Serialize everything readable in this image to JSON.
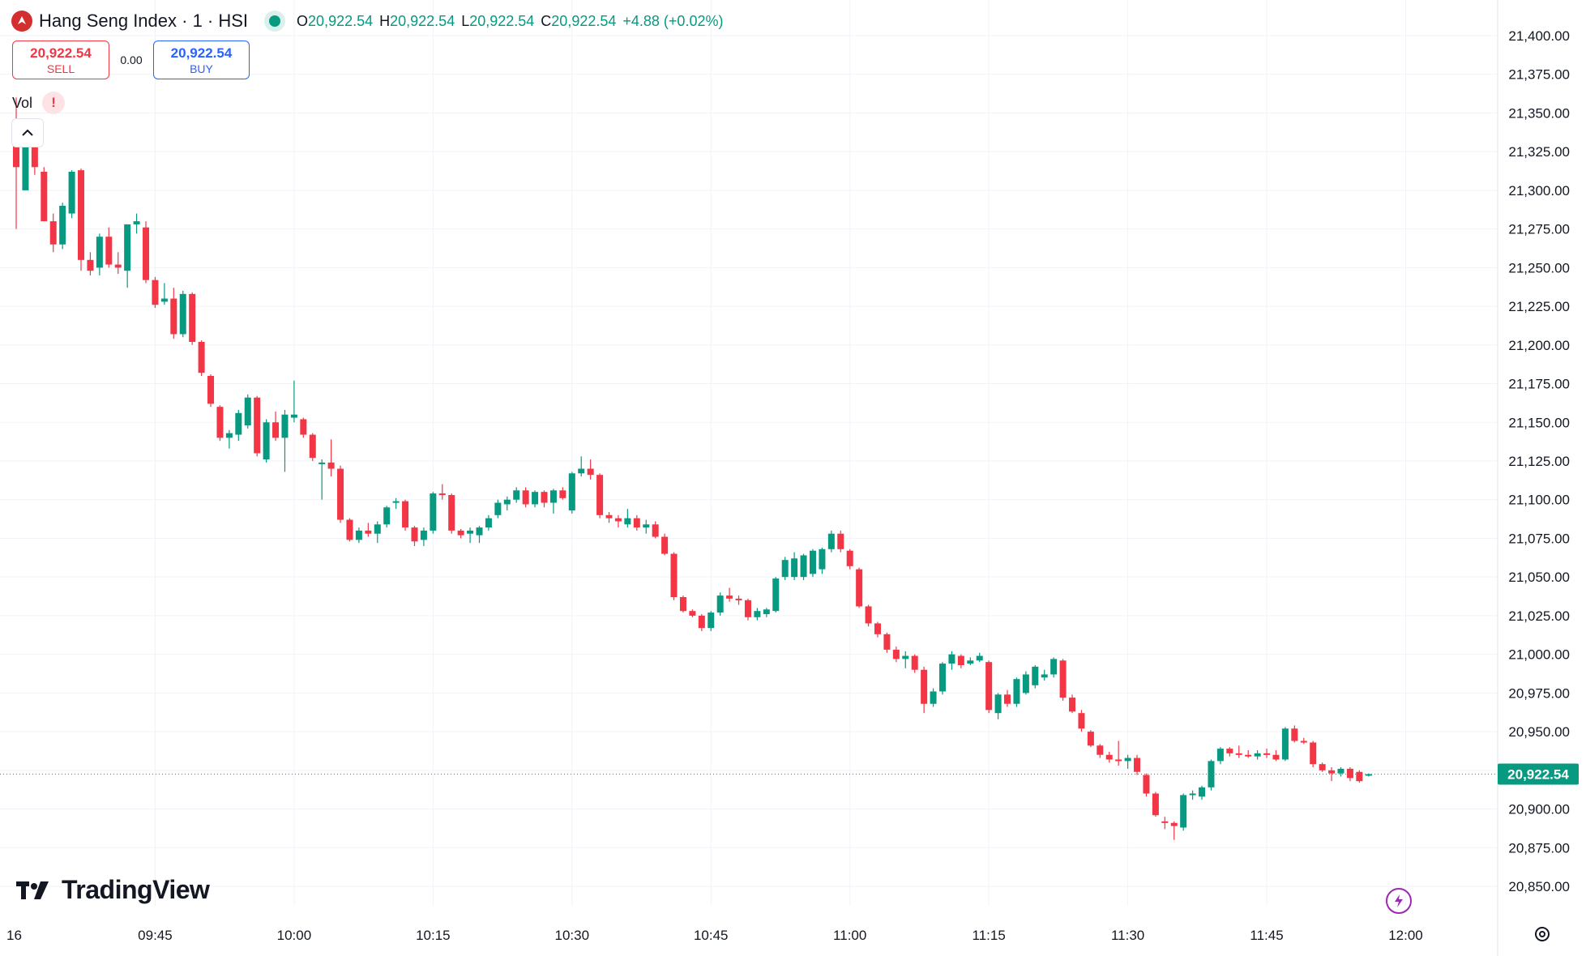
{
  "header": {
    "title": "Hang Seng Index · 1 · HSI",
    "o_label": "O",
    "o": "20,922.54",
    "h_label": "H",
    "h": "20,922.54",
    "l_label": "L",
    "l": "20,922.54",
    "c_label": "C",
    "c": "20,922.54",
    "change": "+4.88 (+0.02%)"
  },
  "trade": {
    "sell_price": "20,922.54",
    "sell_label": "SELL",
    "spread": "0.00",
    "buy_price": "20,922.54",
    "buy_label": "BUY"
  },
  "indicator": {
    "label": "Vol",
    "warning": "!"
  },
  "brand": {
    "name": "TradingView"
  },
  "colors": {
    "up": "#089981",
    "down": "#f23645",
    "grid": "#f0f3fa",
    "axis_text": "#131722"
  },
  "icons": [
    "hsi-logo-icon",
    "status-dot-icon",
    "warning-icon",
    "chevron-up-icon",
    "tradingview-logo-icon",
    "lightning-icon",
    "settings-gear-icon"
  ],
  "chart_data": {
    "type": "candlestick",
    "title": "Hang Seng Index · 1 · HSI",
    "interval": "1 minute",
    "last_price": 20922.54,
    "last_price_label": "20,922.54",
    "ylim": [
      20835,
      21440
    ],
    "y_ticks": [
      21400,
      21375,
      21350,
      21325,
      21300,
      21275,
      21250,
      21225,
      21200,
      21175,
      21150,
      21125,
      21100,
      21075,
      21050,
      21025,
      21000,
      20975,
      20950,
      20925,
      20900,
      20875,
      20850
    ],
    "y_tick_labels": [
      "21,400.00",
      "21,375.00",
      "21,350.00",
      "21,325.00",
      "21,300.00",
      "21,275.00",
      "21,250.00",
      "21,225.00",
      "21,200.00",
      "21,175.00",
      "21,150.00",
      "21,125.00",
      "21,100.00",
      "21,075.00",
      "21,050.00",
      "21,025.00",
      "21,000.00",
      "20,975.00",
      "20,950.00",
      "20,925.00",
      "20,900.00",
      "20,875.00",
      "20,850.00"
    ],
    "x_ticks": [
      {
        "label": "16",
        "minute": -16
      },
      {
        "label": "09:45",
        "minute": 15
      },
      {
        "label": "10:00",
        "minute": 30
      },
      {
        "label": "10:15",
        "minute": 45
      },
      {
        "label": "10:30",
        "minute": 60
      },
      {
        "label": "10:45",
        "minute": 75
      },
      {
        "label": "11:00",
        "minute": 90
      },
      {
        "label": "11:15",
        "minute": 105
      },
      {
        "label": "11:30",
        "minute": 120
      },
      {
        "label": "11:45",
        "minute": 135
      },
      {
        "label": "12:00",
        "minute": 150
      }
    ],
    "x_axis_note": "minute = minutes after 09:30",
    "candles": [
      {
        "t": 0,
        "o": 21345,
        "h": 21360,
        "l": 21275,
        "c": 21315
      },
      {
        "t": 1,
        "o": 21300,
        "h": 21330,
        "l": 21305,
        "c": 21330
      },
      {
        "t": 2,
        "o": 21330,
        "h": 21335,
        "l": 21310,
        "c": 21315
      },
      {
        "t": 3,
        "o": 21312,
        "h": 21315,
        "l": 21280,
        "c": 21280
      },
      {
        "t": 4,
        "o": 21280,
        "h": 21285,
        "l": 21260,
        "c": 21265
      },
      {
        "t": 5,
        "o": 21265,
        "h": 21292,
        "l": 21262,
        "c": 21290
      },
      {
        "t": 6,
        "o": 21285,
        "h": 21313,
        "l": 21282,
        "c": 21312
      },
      {
        "t": 7,
        "o": 21313,
        "h": 21314,
        "l": 21248,
        "c": 21255
      },
      {
        "t": 8,
        "o": 21255,
        "h": 21260,
        "l": 21245,
        "c": 21248
      },
      {
        "t": 9,
        "o": 21250,
        "h": 21272,
        "l": 21245,
        "c": 21270
      },
      {
        "t": 10,
        "o": 21270,
        "h": 21276,
        "l": 21250,
        "c": 21252
      },
      {
        "t": 11,
        "o": 21252,
        "h": 21260,
        "l": 21246,
        "c": 21250
      },
      {
        "t": 12,
        "o": 21248,
        "h": 21278,
        "l": 21237,
        "c": 21278
      },
      {
        "t": 13,
        "o": 21278,
        "h": 21285,
        "l": 21272,
        "c": 21280
      },
      {
        "t": 14,
        "o": 21276,
        "h": 21280,
        "l": 21240,
        "c": 21242
      },
      {
        "t": 15,
        "o": 21242,
        "h": 21244,
        "l": 21224,
        "c": 21226
      },
      {
        "t": 16,
        "o": 21228,
        "h": 21240,
        "l": 21226,
        "c": 21230
      },
      {
        "t": 17,
        "o": 21230,
        "h": 21237,
        "l": 21204,
        "c": 21207
      },
      {
        "t": 18,
        "o": 21207,
        "h": 21235,
        "l": 21205,
        "c": 21233
      },
      {
        "t": 19,
        "o": 21233,
        "h": 21234,
        "l": 21200,
        "c": 21202
      },
      {
        "t": 20,
        "o": 21202,
        "h": 21203,
        "l": 21180,
        "c": 21182
      },
      {
        "t": 21,
        "o": 21180,
        "h": 21181,
        "l": 21160,
        "c": 21162
      },
      {
        "t": 22,
        "o": 21160,
        "h": 21161,
        "l": 21138,
        "c": 21140
      },
      {
        "t": 23,
        "o": 21140,
        "h": 21145,
        "l": 21133,
        "c": 21143
      },
      {
        "t": 24,
        "o": 21142,
        "h": 21158,
        "l": 21138,
        "c": 21156
      },
      {
        "t": 25,
        "o": 21148,
        "h": 21168,
        "l": 21146,
        "c": 21166
      },
      {
        "t": 26,
        "o": 21166,
        "h": 21167,
        "l": 21128,
        "c": 21130
      },
      {
        "t": 27,
        "o": 21126,
        "h": 21152,
        "l": 21124,
        "c": 21150
      },
      {
        "t": 28,
        "o": 21150,
        "h": 21157,
        "l": 21138,
        "c": 21140
      },
      {
        "t": 29,
        "o": 21140,
        "h": 21158,
        "l": 21118,
        "c": 21155
      },
      {
        "t": 30,
        "o": 21153,
        "h": 21177,
        "l": 21150,
        "c": 21155
      },
      {
        "t": 31,
        "o": 21152,
        "h": 21153,
        "l": 21140,
        "c": 21142
      },
      {
        "t": 32,
        "o": 21142,
        "h": 21143,
        "l": 21125,
        "c": 21127
      },
      {
        "t": 33,
        "o": 21123,
        "h": 21126,
        "l": 21100,
        "c": 21124
      },
      {
        "t": 34,
        "o": 21124,
        "h": 21139,
        "l": 21115,
        "c": 21120
      },
      {
        "t": 35,
        "o": 21120,
        "h": 21122,
        "l": 21085,
        "c": 21087
      },
      {
        "t": 36,
        "o": 21087,
        "h": 21088,
        "l": 21073,
        "c": 21074
      },
      {
        "t": 37,
        "o": 21074,
        "h": 21082,
        "l": 21072,
        "c": 21080
      },
      {
        "t": 38,
        "o": 21080,
        "h": 21085,
        "l": 21076,
        "c": 21078
      },
      {
        "t": 39,
        "o": 21078,
        "h": 21086,
        "l": 21072,
        "c": 21084
      },
      {
        "t": 40,
        "o": 21084,
        "h": 21096,
        "l": 21082,
        "c": 21095
      },
      {
        "t": 41,
        "o": 21098,
        "h": 21101,
        "l": 21094,
        "c": 21099
      },
      {
        "t": 42,
        "o": 21099,
        "h": 21100,
        "l": 21080,
        "c": 21082
      },
      {
        "t": 43,
        "o": 21082,
        "h": 21083,
        "l": 21070,
        "c": 21073
      },
      {
        "t": 44,
        "o": 21074,
        "h": 21082,
        "l": 21070,
        "c": 21080
      },
      {
        "t": 45,
        "o": 21080,
        "h": 21105,
        "l": 21078,
        "c": 21104
      },
      {
        "t": 46,
        "o": 21104,
        "h": 21110,
        "l": 21100,
        "c": 21103
      },
      {
        "t": 47,
        "o": 21103,
        "h": 21104,
        "l": 21078,
        "c": 21080
      },
      {
        "t": 48,
        "o": 21080,
        "h": 21081,
        "l": 21075,
        "c": 21077
      },
      {
        "t": 49,
        "o": 21078,
        "h": 21082,
        "l": 21072,
        "c": 21080
      },
      {
        "t": 50,
        "o": 21077,
        "h": 21083,
        "l": 21072,
        "c": 21082
      },
      {
        "t": 51,
        "o": 21082,
        "h": 21090,
        "l": 21080,
        "c": 21088
      },
      {
        "t": 52,
        "o": 21090,
        "h": 21100,
        "l": 21088,
        "c": 21098
      },
      {
        "t": 53,
        "o": 21097,
        "h": 21102,
        "l": 21093,
        "c": 21100
      },
      {
        "t": 54,
        "o": 21100,
        "h": 21108,
        "l": 21098,
        "c": 21106
      },
      {
        "t": 55,
        "o": 21106,
        "h": 21108,
        "l": 21095,
        "c": 21097
      },
      {
        "t": 56,
        "o": 21097,
        "h": 21106,
        "l": 21095,
        "c": 21105
      },
      {
        "t": 57,
        "o": 21105,
        "h": 21106,
        "l": 21095,
        "c": 21098
      },
      {
        "t": 58,
        "o": 21098,
        "h": 21107,
        "l": 21091,
        "c": 21106
      },
      {
        "t": 59,
        "o": 21106,
        "h": 21108,
        "l": 21100,
        "c": 21101
      },
      {
        "t": 60,
        "o": 21093,
        "h": 21118,
        "l": 21091,
        "c": 21117
      },
      {
        "t": 61,
        "o": 21117,
        "h": 21128,
        "l": 21115,
        "c": 21120
      },
      {
        "t": 62,
        "o": 21120,
        "h": 21126,
        "l": 21113,
        "c": 21116
      },
      {
        "t": 63,
        "o": 21116,
        "h": 21117,
        "l": 21088,
        "c": 21090
      },
      {
        "t": 64,
        "o": 21090,
        "h": 21092,
        "l": 21085,
        "c": 21088
      },
      {
        "t": 65,
        "o": 21088,
        "h": 21090,
        "l": 21082,
        "c": 21086
      },
      {
        "t": 66,
        "o": 21084,
        "h": 21094,
        "l": 21082,
        "c": 21088
      },
      {
        "t": 67,
        "o": 21088,
        "h": 21090,
        "l": 21080,
        "c": 21082
      },
      {
        "t": 68,
        "o": 21082,
        "h": 21087,
        "l": 21078,
        "c": 21084
      },
      {
        "t": 69,
        "o": 21084,
        "h": 21086,
        "l": 21075,
        "c": 21076
      },
      {
        "t": 70,
        "o": 21076,
        "h": 21078,
        "l": 21064,
        "c": 21065
      },
      {
        "t": 71,
        "o": 21065,
        "h": 21066,
        "l": 21035,
        "c": 21037
      },
      {
        "t": 72,
        "o": 21037,
        "h": 21038,
        "l": 21027,
        "c": 21028
      },
      {
        "t": 73,
        "o": 21028,
        "h": 21029,
        "l": 21024,
        "c": 21025
      },
      {
        "t": 74,
        "o": 21025,
        "h": 21026,
        "l": 21015,
        "c": 21017
      },
      {
        "t": 75,
        "o": 21017,
        "h": 21028,
        "l": 21015,
        "c": 21027
      },
      {
        "t": 76,
        "o": 21027,
        "h": 21040,
        "l": 21025,
        "c": 21038
      },
      {
        "t": 77,
        "o": 21038,
        "h": 21043,
        "l": 21034,
        "c": 21036
      },
      {
        "t": 78,
        "o": 21036,
        "h": 21038,
        "l": 21032,
        "c": 21035
      },
      {
        "t": 79,
        "o": 21035,
        "h": 21036,
        "l": 21022,
        "c": 21024
      },
      {
        "t": 80,
        "o": 21024,
        "h": 21030,
        "l": 21022,
        "c": 21028
      },
      {
        "t": 81,
        "o": 21026,
        "h": 21030,
        "l": 21024,
        "c": 21029
      },
      {
        "t": 82,
        "o": 21028,
        "h": 21050,
        "l": 21027,
        "c": 21049
      },
      {
        "t": 83,
        "o": 21050,
        "h": 21063,
        "l": 21048,
        "c": 21061
      },
      {
        "t": 84,
        "o": 21050,
        "h": 21066,
        "l": 21048,
        "c": 21062
      },
      {
        "t": 85,
        "o": 21050,
        "h": 21065,
        "l": 21048,
        "c": 21064
      },
      {
        "t": 86,
        "o": 21052,
        "h": 21068,
        "l": 21050,
        "c": 21067
      },
      {
        "t": 87,
        "o": 21055,
        "h": 21069,
        "l": 21052,
        "c": 21068
      },
      {
        "t": 88,
        "o": 21068,
        "h": 21080,
        "l": 21066,
        "c": 21078
      },
      {
        "t": 89,
        "o": 21078,
        "h": 21080,
        "l": 21066,
        "c": 21068
      },
      {
        "t": 90,
        "o": 21067,
        "h": 21068,
        "l": 21055,
        "c": 21057
      },
      {
        "t": 91,
        "o": 21055,
        "h": 21056,
        "l": 21030,
        "c": 21031
      },
      {
        "t": 92,
        "o": 21031,
        "h": 21032,
        "l": 21018,
        "c": 21020
      },
      {
        "t": 93,
        "o": 21020,
        "h": 21021,
        "l": 21011,
        "c": 21013
      },
      {
        "t": 94,
        "o": 21013,
        "h": 21014,
        "l": 21001,
        "c": 21003
      },
      {
        "t": 95,
        "o": 21003,
        "h": 21005,
        "l": 20995,
        "c": 20997
      },
      {
        "t": 96,
        "o": 20997,
        "h": 21002,
        "l": 20991,
        "c": 20999
      },
      {
        "t": 97,
        "o": 20999,
        "h": 21000,
        "l": 20988,
        "c": 20990
      },
      {
        "t": 98,
        "o": 20990,
        "h": 20992,
        "l": 20962,
        "c": 20968
      },
      {
        "t": 99,
        "o": 20968,
        "h": 20978,
        "l": 20966,
        "c": 20976
      },
      {
        "t": 100,
        "o": 20976,
        "h": 20995,
        "l": 20974,
        "c": 20994
      },
      {
        "t": 101,
        "o": 20994,
        "h": 21002,
        "l": 20990,
        "c": 21000
      },
      {
        "t": 102,
        "o": 20999,
        "h": 21000,
        "l": 20991,
        "c": 20993
      },
      {
        "t": 103,
        "o": 20994,
        "h": 20998,
        "l": 20993,
        "c": 20996
      },
      {
        "t": 104,
        "o": 20996,
        "h": 21001,
        "l": 20995,
        "c": 20999
      },
      {
        "t": 105,
        "o": 20995,
        "h": 20996,
        "l": 20962,
        "c": 20964
      },
      {
        "t": 106,
        "o": 20962,
        "h": 20975,
        "l": 20958,
        "c": 20974
      },
      {
        "t": 107,
        "o": 20974,
        "h": 20977,
        "l": 20966,
        "c": 20968
      },
      {
        "t": 108,
        "o": 20968,
        "h": 20985,
        "l": 20966,
        "c": 20984
      },
      {
        "t": 109,
        "o": 20975,
        "h": 20989,
        "l": 20974,
        "c": 20987
      },
      {
        "t": 110,
        "o": 20980,
        "h": 20993,
        "l": 20978,
        "c": 20992
      },
      {
        "t": 111,
        "o": 20985,
        "h": 20990,
        "l": 20983,
        "c": 20987
      },
      {
        "t": 112,
        "o": 20987,
        "h": 20998,
        "l": 20985,
        "c": 20997
      },
      {
        "t": 113,
        "o": 20996,
        "h": 20997,
        "l": 20970,
        "c": 20972
      },
      {
        "t": 114,
        "o": 20972,
        "h": 20974,
        "l": 20962,
        "c": 20963
      },
      {
        "t": 115,
        "o": 20962,
        "h": 20964,
        "l": 20950,
        "c": 20952
      },
      {
        "t": 116,
        "o": 20950,
        "h": 20951,
        "l": 20940,
        "c": 20941
      },
      {
        "t": 117,
        "o": 20941,
        "h": 20942,
        "l": 20933,
        "c": 20935
      },
      {
        "t": 118,
        "o": 20935,
        "h": 20937,
        "l": 20930,
        "c": 20932
      },
      {
        "t": 119,
        "o": 20932,
        "h": 20944,
        "l": 20928,
        "c": 20931
      },
      {
        "t": 120,
        "o": 20931,
        "h": 20935,
        "l": 20926,
        "c": 20933
      },
      {
        "t": 121,
        "o": 20933,
        "h": 20935,
        "l": 20922,
        "c": 20924
      },
      {
        "t": 122,
        "o": 20922,
        "h": 20923,
        "l": 20908,
        "c": 20910
      },
      {
        "t": 123,
        "o": 20910,
        "h": 20911,
        "l": 20895,
        "c": 20896
      },
      {
        "t": 124,
        "o": 20892,
        "h": 20895,
        "l": 20887,
        "c": 20891
      },
      {
        "t": 125,
        "o": 20891,
        "h": 20892,
        "l": 20880,
        "c": 20889
      },
      {
        "t": 126,
        "o": 20888,
        "h": 20910,
        "l": 20886,
        "c": 20909
      },
      {
        "t": 127,
        "o": 20909,
        "h": 20912,
        "l": 20906,
        "c": 20910
      },
      {
        "t": 128,
        "o": 20908,
        "h": 20915,
        "l": 20906,
        "c": 20914
      },
      {
        "t": 129,
        "o": 20914,
        "h": 20932,
        "l": 20912,
        "c": 20931
      },
      {
        "t": 130,
        "o": 20931,
        "h": 20940,
        "l": 20929,
        "c": 20939
      },
      {
        "t": 131,
        "o": 20939,
        "h": 20940,
        "l": 20934,
        "c": 20936
      },
      {
        "t": 132,
        "o": 20936,
        "h": 20941,
        "l": 20933,
        "c": 20935
      },
      {
        "t": 133,
        "o": 20935,
        "h": 20938,
        "l": 20933,
        "c": 20934
      },
      {
        "t": 134,
        "o": 20934,
        "h": 20938,
        "l": 20932,
        "c": 20936
      },
      {
        "t": 135,
        "o": 20936,
        "h": 20939,
        "l": 20933,
        "c": 20935
      },
      {
        "t": 136,
        "o": 20935,
        "h": 20938,
        "l": 20931,
        "c": 20932
      },
      {
        "t": 137,
        "o": 20932,
        "h": 20953,
        "l": 20931,
        "c": 20952
      },
      {
        "t": 138,
        "o": 20952,
        "h": 20954,
        "l": 20943,
        "c": 20944
      },
      {
        "t": 139,
        "o": 20944,
        "h": 20946,
        "l": 20942,
        "c": 20943
      },
      {
        "t": 140,
        "o": 20943,
        "h": 20944,
        "l": 20927,
        "c": 20929
      },
      {
        "t": 141,
        "o": 20929,
        "h": 20930,
        "l": 20924,
        "c": 20925
      },
      {
        "t": 142,
        "o": 20925,
        "h": 20927,
        "l": 20918,
        "c": 20923
      },
      {
        "t": 143,
        "o": 20923,
        "h": 20927,
        "l": 20921,
        "c": 20926
      },
      {
        "t": 144,
        "o": 20926,
        "h": 20927,
        "l": 20918,
        "c": 20920
      },
      {
        "t": 145,
        "o": 20924,
        "h": 20925,
        "l": 20917,
        "c": 20918
      },
      {
        "t": 146,
        "o": 20922,
        "h": 20923,
        "l": 20921,
        "c": 20922.54
      }
    ]
  }
}
